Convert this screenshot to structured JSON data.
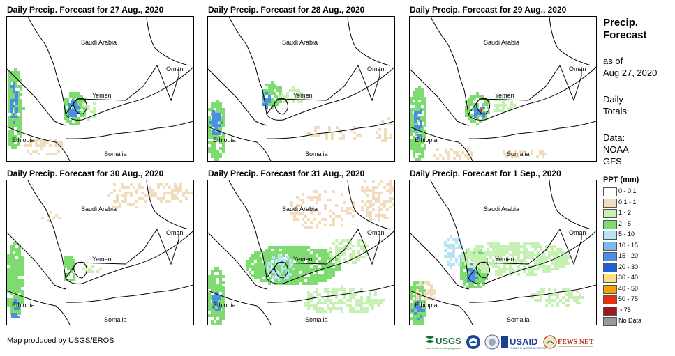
{
  "panels": [
    {
      "title": "Daily Precip. Forecast for 27 Aug., 2020"
    },
    {
      "title": "Daily Precip. Forecast for 28 Aug., 2020"
    },
    {
      "title": "Daily Precip. Forecast for 29 Aug., 2020"
    },
    {
      "title": "Daily Precip. Forecast for 30 Aug., 2020"
    },
    {
      "title": "Daily Precip. Forecast for 31 Aug., 2020"
    },
    {
      "title": "Daily Precip. Forecast for 1 Sep., 2020"
    }
  ],
  "map_labels": {
    "saudi": "Saudi Arabia",
    "oman": "Oman",
    "yemen": "Yemen",
    "ethiopia": "Ethiopia",
    "somalia": "Somalia"
  },
  "sidebar": {
    "title_line1": "Precip.",
    "title_line2": "Forecast",
    "asof_line1": "as of",
    "asof_line2": "Aug 27, 2020",
    "daily_line1": "Daily",
    "daily_line2": "Totals",
    "data_line1": "Data:",
    "data_line2": "NOAA-",
    "data_line3": "GFS"
  },
  "legend": {
    "title": "PPT (mm)",
    "items": [
      {
        "label": "0 - 0.1",
        "color": "#ffffff"
      },
      {
        "label": "0.1 - 1",
        "color": "#f1dcbd"
      },
      {
        "label": "1 - 2",
        "color": "#c6f0b4"
      },
      {
        "label": "2 - 5",
        "color": "#7edb70"
      },
      {
        "label": "5 - 10",
        "color": "#b7e3f7"
      },
      {
        "label": "10 - 15",
        "color": "#7bb8ee"
      },
      {
        "label": "15 - 20",
        "color": "#4a8ee6"
      },
      {
        "label": "20 - 30",
        "color": "#1f5fd6"
      },
      {
        "label": "30 - 40",
        "color": "#ffe080"
      },
      {
        "label": "40 - 50",
        "color": "#f5a000"
      },
      {
        "label": "50 - 75",
        "color": "#e83010"
      },
      {
        "label": "> 75",
        "color": "#a01818"
      },
      {
        "label": "No Data",
        "color": "#9a9a9a"
      }
    ]
  },
  "credit": "Map produced by USGS/EROS",
  "logos": {
    "usgs": "USGS",
    "usaid": "USAID",
    "fewsnet": "FEWS NET"
  }
}
